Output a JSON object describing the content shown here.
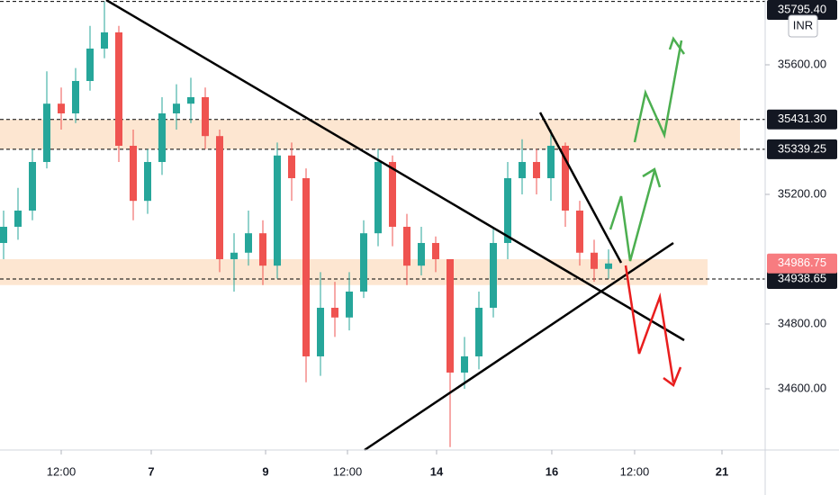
{
  "chart_data": {
    "type": "candlestick",
    "currency": "INR",
    "up_color": "#26a69a",
    "down_color": "#ef5350",
    "x": [
      0,
      1,
      2,
      3,
      4,
      5,
      6,
      7,
      8,
      9,
      10,
      11,
      12,
      13,
      14,
      15,
      16,
      17,
      18,
      19,
      20,
      21,
      22,
      23,
      24,
      25,
      26,
      27,
      28,
      29,
      30,
      31,
      32,
      33,
      34,
      35,
      36,
      37,
      38,
      39,
      40,
      41,
      42
    ],
    "open": [
      35050,
      35100,
      35150,
      35300,
      35480,
      35450,
      35550,
      35650,
      35700,
      35350,
      35180,
      35300,
      35450,
      35480,
      35500,
      35380,
      35000,
      35020,
      35080,
      34980,
      35320,
      35250,
      34700,
      34850,
      34820,
      34900,
      35080,
      35300,
      35100,
      34980,
      35050,
      35000,
      34650,
      34700,
      34850,
      35050,
      35250,
      35300,
      35250,
      35350,
      35150,
      35020,
      34970
    ],
    "high": [
      35150,
      35220,
      35340,
      35580,
      35530,
      35590,
      35720,
      35795,
      35720,
      35400,
      35340,
      35500,
      35540,
      35560,
      35530,
      35400,
      35080,
      35150,
      35120,
      35360,
      35360,
      35280,
      34960,
      34930,
      34960,
      35120,
      35340,
      35320,
      35140,
      35100,
      35070,
      35000,
      34760,
      34900,
      35100,
      35300,
      35370,
      35340,
      35400,
      35360,
      35180,
      35060,
      35030
    ],
    "low": [
      35000,
      35060,
      35120,
      35280,
      35400,
      35420,
      35520,
      35620,
      35300,
      35120,
      35140,
      35260,
      35400,
      35420,
      35340,
      34960,
      34900,
      34980,
      34920,
      34940,
      35180,
      34620,
      34640,
      34760,
      34780,
      34880,
      35040,
      35040,
      34920,
      34950,
      34960,
      34420,
      34600,
      34660,
      34820,
      35000,
      35200,
      35200,
      35180,
      35100,
      34980,
      34930,
      34940
    ],
    "close": [
      35100,
      35150,
      35300,
      35480,
      35450,
      35550,
      35650,
      35700,
      35350,
      35180,
      35300,
      35450,
      35480,
      35500,
      35380,
      35000,
      35020,
      35080,
      34980,
      35320,
      35250,
      34700,
      34850,
      34820,
      34900,
      35080,
      35300,
      35100,
      34980,
      35050,
      35000,
      34650,
      34700,
      34850,
      35050,
      35250,
      35300,
      35250,
      35350,
      35150,
      35020,
      34970,
      34986.75
    ],
    "xlim": [
      -0.25,
      52.875
    ],
    "ylim": [
      34411,
      35800
    ],
    "xticks": [
      {
        "value": 4,
        "label": "12:00"
      },
      {
        "value": 10.25,
        "label": "7"
      },
      {
        "value": 18.19,
        "label": "9"
      },
      {
        "value": 23.875,
        "label": "12:00"
      },
      {
        "value": 30.06,
        "label": "14"
      },
      {
        "value": 38.06,
        "label": "16"
      },
      {
        "value": 43.81,
        "label": "12:00"
      },
      {
        "value": 49.875,
        "label": "21"
      }
    ],
    "yticks": [
      {
        "value": 35600,
        "label": "35600.00"
      },
      {
        "value": 35200,
        "label": "35200.00"
      },
      {
        "value": 34800,
        "label": "34800.00"
      },
      {
        "value": 34600,
        "label": "34600.00"
      }
    ],
    "levels": [
      {
        "value": 35795.4,
        "label": "35795.40"
      },
      {
        "value": 35431.3,
        "label": "35431.30"
      },
      {
        "value": 35339.25,
        "label": "35339.25"
      },
      {
        "value": 34938.65,
        "label": "34938.65"
      }
    ],
    "last_price": {
      "value": 34986.75,
      "label": "34986.75"
    },
    "zones": [
      {
        "from": 35339.25,
        "to": 35431.3
      },
      {
        "from": 34920,
        "to": 35000
      }
    ]
  }
}
